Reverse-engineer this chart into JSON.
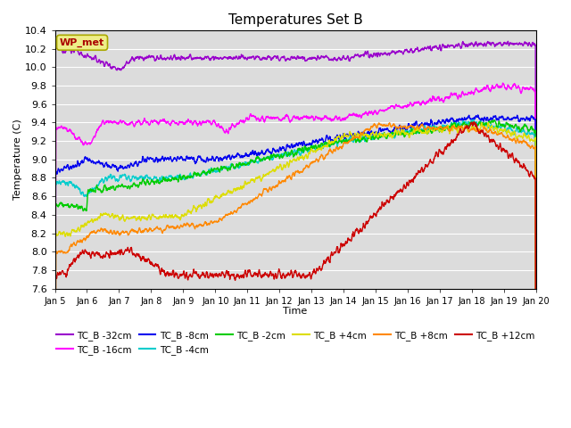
{
  "title": "Temperatures Set B",
  "xlabel": "Time",
  "ylabel": "Temperature (C)",
  "ylim": [
    7.6,
    10.4
  ],
  "xlim": [
    0,
    15
  ],
  "xtick_labels": [
    "Jan 5",
    "Jan 6",
    "Jan 7",
    "Jan 8",
    "Jan 9",
    "Jan 10",
    "Jan 11",
    "Jan 12",
    "Jan 13",
    "Jan 14",
    "Jan 15",
    "Jan 16",
    "Jan 17",
    "Jan 18",
    "Jan 19",
    "Jan 20"
  ],
  "ytick_vals": [
    7.6,
    7.8,
    8.0,
    8.2,
    8.4,
    8.6,
    8.8,
    9.0,
    9.2,
    9.4,
    9.6,
    9.8,
    10.0,
    10.2,
    10.4
  ],
  "series_order": [
    "TC_B -32cm",
    "TC_B -16cm",
    "TC_B -8cm",
    "TC_B -4cm",
    "TC_B -2cm",
    "TC_B +4cm",
    "TC_B +8cm",
    "TC_B +12cm"
  ],
  "series": {
    "TC_B -32cm": {
      "color": "#9900cc",
      "lw": 1.0
    },
    "TC_B -16cm": {
      "color": "#ff00ff",
      "lw": 1.0
    },
    "TC_B -8cm": {
      "color": "#0000ee",
      "lw": 1.0
    },
    "TC_B -4cm": {
      "color": "#00cccc",
      "lw": 1.0
    },
    "TC_B -2cm": {
      "color": "#00cc00",
      "lw": 1.0
    },
    "TC_B +4cm": {
      "color": "#dddd00",
      "lw": 1.0
    },
    "TC_B +8cm": {
      "color": "#ff8800",
      "lw": 1.0
    },
    "TC_B +12cm": {
      "color": "#cc0000",
      "lw": 1.0
    }
  },
  "bg_color": "#dcdcdc",
  "grid_color": "#ffffff",
  "fig_bg": "#ffffff",
  "wp_met_box_color": "#eeee88",
  "wp_met_text_color": "#aa0000"
}
